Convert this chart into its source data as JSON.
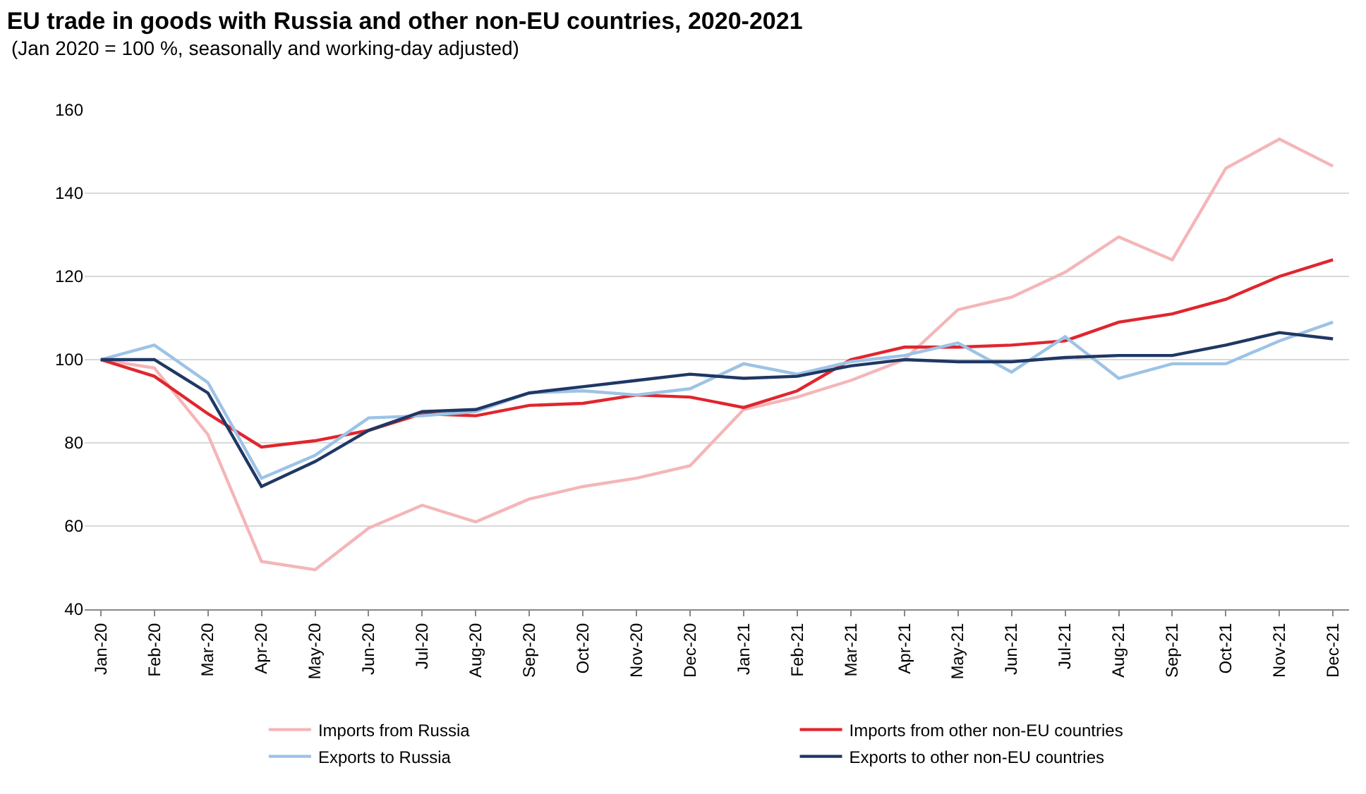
{
  "chart_data": {
    "type": "line",
    "title": "EU trade in goods with Russia and other non-EU countries, 2020-2021",
    "subtitle": "(Jan 2020 = 100 %, seasonally and working-day adjusted)",
    "categories": [
      "Jan-20",
      "Feb-20",
      "Mar-20",
      "Apr-20",
      "May-20",
      "Jun-20",
      "Jul-20",
      "Aug-20",
      "Sep-20",
      "Oct-20",
      "Nov-20",
      "Dec-20",
      "Jan-21",
      "Feb-21",
      "Mar-21",
      "Apr-21",
      "May-21",
      "Jun-21",
      "Jul-21",
      "Aug-21",
      "Sep-21",
      "Oct-21",
      "Nov-21",
      "Dec-21"
    ],
    "series": [
      {
        "name": "Imports from Russia",
        "color": "#f4b6b9",
        "values": [
          100,
          98,
          82,
          51.5,
          49.5,
          59.5,
          65,
          61,
          66.5,
          69.5,
          71.5,
          74.5,
          88,
          91,
          95,
          100,
          112,
          115,
          121,
          129.5,
          124,
          146,
          153,
          146.5
        ]
      },
      {
        "name": "Imports from other non-EU countries",
        "color": "#e0262e",
        "values": [
          100,
          96,
          87,
          79,
          80.5,
          83,
          87,
          86.5,
          89,
          89.5,
          91.5,
          91,
          88.5,
          92.5,
          100,
          103,
          103,
          103.5,
          104.5,
          109,
          111,
          114.5,
          120,
          124
        ]
      },
      {
        "name": "Exports to Russia",
        "color": "#9dc3e6",
        "values": [
          100,
          103.5,
          94.5,
          71.5,
          77,
          86,
          86.5,
          87.5,
          92,
          92.5,
          91.5,
          93,
          99,
          96.5,
          99.5,
          101,
          104,
          97,
          105.5,
          95.5,
          99,
          99,
          104.5,
          109
        ]
      },
      {
        "name": "Exports to other non-EU countries",
        "color": "#1f3864",
        "values": [
          100,
          100,
          92,
          69.5,
          75.5,
          83,
          87.5,
          88,
          92,
          93.5,
          95,
          96.5,
          95.5,
          96,
          98.5,
          100,
          99.5,
          99.5,
          100.5,
          101,
          101,
          103.5,
          106.5,
          105
        ]
      }
    ],
    "ylim": [
      40,
      160
    ],
    "yticks": [
      40,
      60,
      80,
      100,
      120,
      140,
      160
    ],
    "grid": "y",
    "legend": "bottom",
    "marker": "none",
    "line_style": "solid"
  }
}
